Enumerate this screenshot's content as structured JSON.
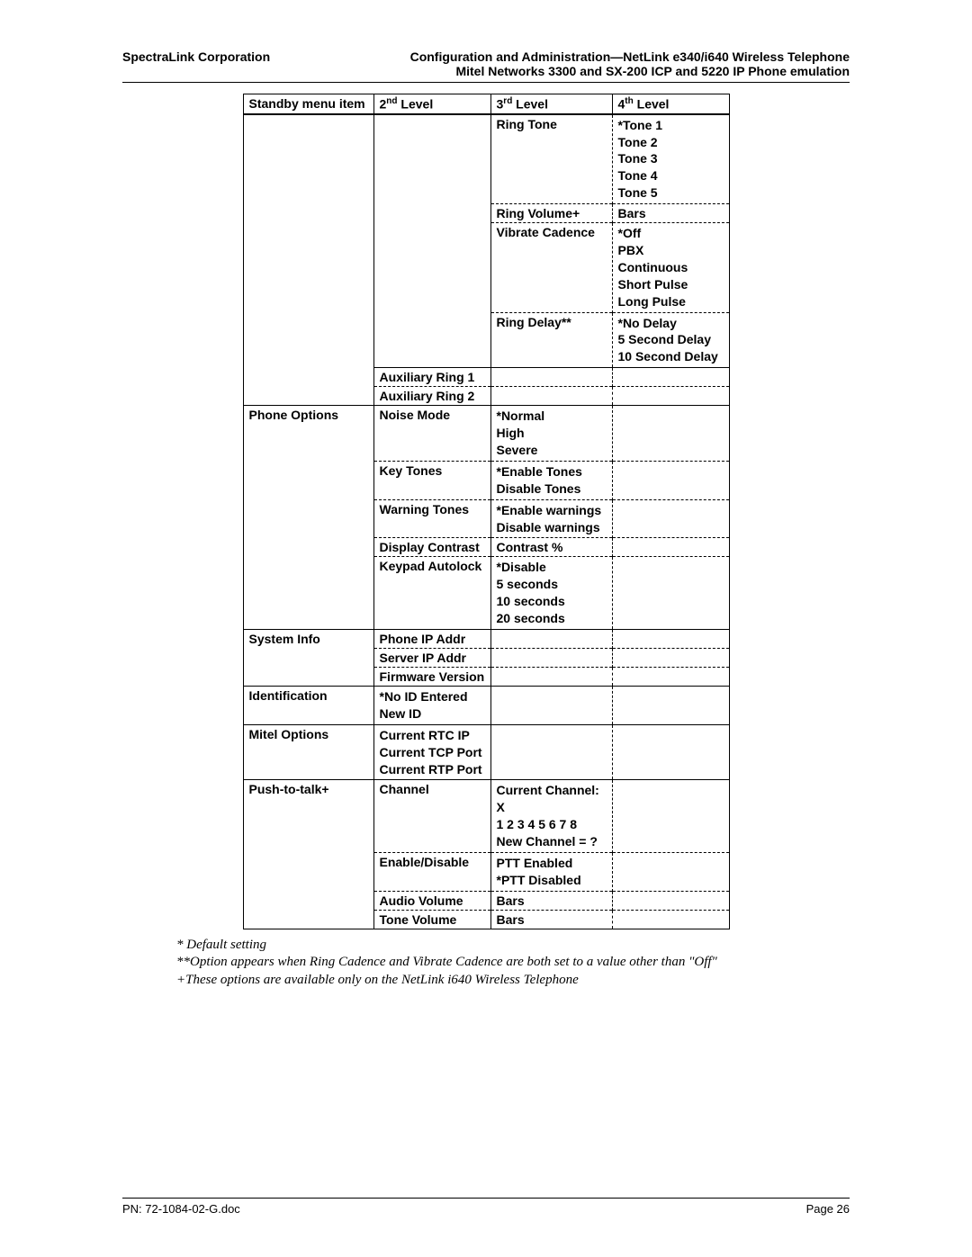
{
  "header": {
    "left": "SpectraLink Corporation",
    "right1": "Configuration and Administration—NetLink e340/i640 Wireless Telephone",
    "right2": "Mitel Networks 3300 and SX-200 ICP and 5220 IP Phone emulation"
  },
  "columns": {
    "c1": "Standby menu item",
    "c2a": "2",
    "c2b": "nd",
    "c2c": " Level",
    "c3a": "3",
    "c3b": "rd",
    "c3c": " Level",
    "c4a": "4",
    "c4b": "th",
    "c4c": " Level"
  },
  "cells": {
    "ringTone": "Ring Tone",
    "tones": "*Tone 1\nTone 2\nTone 3\nTone 4\nTone 5",
    "ringVolume": "Ring Volume+",
    "bars": "Bars",
    "vibrateCadence": "Vibrate Cadence",
    "vibrateVals": "*Off\nPBX\nContinuous\nShort Pulse\nLong Pulse",
    "ringDelay": "Ring Delay**",
    "ringDelayVals": "*No Delay\n5 Second Delay\n10 Second Delay",
    "auxRing1": "Auxiliary Ring 1",
    "auxRing2": "Auxiliary Ring 2",
    "phoneOptions": "Phone Options",
    "noiseMode": "Noise Mode",
    "noiseVals": "*Normal\nHigh\nSevere",
    "keyTones": "Key Tones",
    "keyTonesVals": "*Enable Tones\nDisable Tones",
    "warningTones": "Warning Tones",
    "warningVals": "*Enable warnings\nDisable warnings",
    "displayContrast": "Display Contrast",
    "contrastPct": "Contrast %",
    "keypadAutolock": "Keypad Autolock",
    "keypadVals": "*Disable\n5 seconds\n10 seconds\n20 seconds",
    "systemInfo": "System Info",
    "phoneIP": "Phone IP Addr",
    "serverIP": "Server IP Addr",
    "firmware": "Firmware Version",
    "identification": "Identification",
    "idVals": "*No ID Entered\nNew ID",
    "mitelOptions": "Mitel Options",
    "mitelVals": "Current RTC IP\nCurrent TCP Port\nCurrent RTP Port",
    "ptt": "Push-to-talk+",
    "channel": "Channel",
    "channelVals": "Current Channel: X\n1 2 3 4 5 6 7 8\nNew Channel = ?",
    "enableDisable": "Enable/Disable",
    "enableVals": "PTT Enabled\n*PTT Disabled",
    "audioVolume": "Audio Volume",
    "toneVolume": "Tone Volume"
  },
  "footnotes": {
    "f1": "* Default setting",
    "f2": "**Option appears when Ring Cadence and Vibrate Cadence are both set to a value other than \"Off\"",
    "f3": "+These options are available only on the NetLink i640 Wireless Telephone"
  },
  "footer": {
    "left": "PN: 72-1084-02-G.doc",
    "right": "Page 26"
  }
}
